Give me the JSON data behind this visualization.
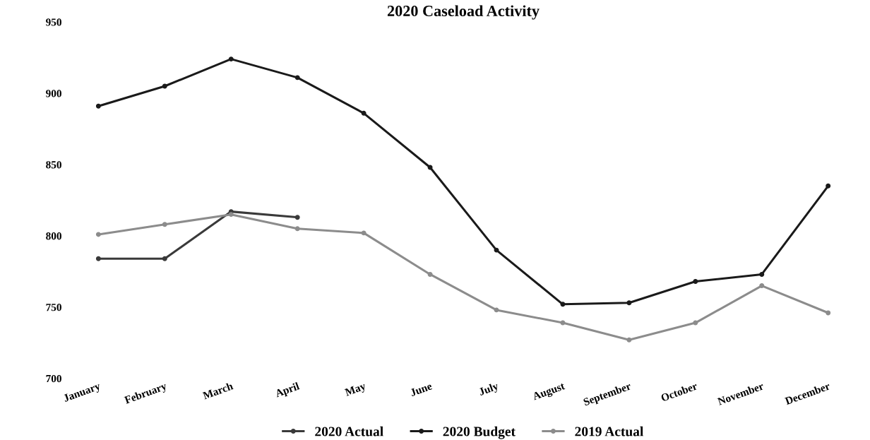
{
  "chart_data": {
    "type": "line",
    "title": "2020 Caseload Activity",
    "categories": [
      "January",
      "February",
      "March",
      "April",
      "May",
      "June",
      "July",
      "August",
      "September",
      "October",
      "November",
      "December"
    ],
    "series": [
      {
        "name": "2020 Actual",
        "color": "#3a3a3a",
        "values": [
          784,
          784,
          817,
          813,
          null,
          null,
          null,
          null,
          null,
          null,
          null,
          null
        ]
      },
      {
        "name": "2020 Budget",
        "color": "#1a1a1a",
        "values": [
          891,
          905,
          924,
          911,
          886,
          848,
          790,
          752,
          753,
          768,
          773,
          835
        ]
      },
      {
        "name": "2019 Actual",
        "color": "#8c8c8c",
        "values": [
          801,
          808,
          815,
          805,
          802,
          773,
          748,
          739,
          727,
          739,
          765,
          746
        ]
      }
    ],
    "ylim": [
      700,
      950
    ],
    "yticks": [
      700,
      750,
      800,
      850,
      900,
      950
    ],
    "grid": false,
    "legend": "bottom",
    "marker": "circle",
    "line_style": "solid"
  }
}
